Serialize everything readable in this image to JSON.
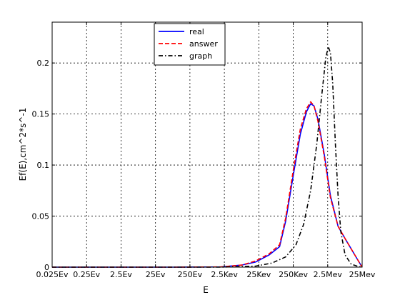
{
  "chart_data": {
    "type": "line",
    "title": "",
    "xlabel": "E",
    "ylabel": "Ef(E),cm^2*s^-1",
    "xscale": "log",
    "xlim": [
      0.025,
      25000000
    ],
    "ylim": [
      0,
      0.24
    ],
    "grid": true,
    "legend_position": "top-center",
    "x_ticks": [
      {
        "value": 0.025,
        "label": "0.025Ev"
      },
      {
        "value": 0.25,
        "label": "0.25Ev"
      },
      {
        "value": 2.5,
        "label": "2.5Ev"
      },
      {
        "value": 25,
        "label": "25Ev"
      },
      {
        "value": 250,
        "label": "250Ev"
      },
      {
        "value": 2500,
        "label": "2.5Kev"
      },
      {
        "value": 25000,
        "label": "25Kev"
      },
      {
        "value": 250000,
        "label": "250Kev"
      },
      {
        "value": 2500000,
        "label": "2.5Mev"
      },
      {
        "value": 25000000,
        "label": "25Mev"
      }
    ],
    "y_ticks": [
      {
        "value": 0,
        "label": "0"
      },
      {
        "value": 0.05,
        "label": "0.05"
      },
      {
        "value": 0.1,
        "label": "0.1"
      },
      {
        "value": 0.15,
        "label": "0.15"
      },
      {
        "value": 0.2,
        "label": "0.2"
      }
    ],
    "series": [
      {
        "name": "real",
        "color": "#0000ff",
        "style": "solid",
        "x": [
          0.025,
          1,
          100,
          2000,
          8000,
          20000,
          50000,
          100000,
          150000,
          250000,
          400000,
          600000,
          800000,
          1000000,
          1300000,
          2000000,
          3000000,
          5000000,
          8000000,
          12000000,
          18000000,
          25000000
        ],
        "y": [
          0,
          0,
          0,
          0.0002,
          0.002,
          0.005,
          0.012,
          0.02,
          0.045,
          0.09,
          0.13,
          0.152,
          0.16,
          0.158,
          0.145,
          0.11,
          0.07,
          0.04,
          0.028,
          0.018,
          0.008,
          0
        ]
      },
      {
        "name": "answer",
        "color": "#ff0000",
        "style": "dashed",
        "x": [
          0.025,
          1,
          100,
          2000,
          8000,
          20000,
          50000,
          100000,
          150000,
          250000,
          400000,
          600000,
          800000,
          1000000,
          1300000,
          2000000,
          3000000,
          5000000,
          8000000,
          12000000,
          18000000,
          25000000
        ],
        "y": [
          0,
          0,
          0,
          0.0002,
          0.002,
          0.006,
          0.013,
          0.022,
          0.048,
          0.095,
          0.135,
          0.155,
          0.162,
          0.158,
          0.143,
          0.108,
          0.068,
          0.04,
          0.028,
          0.018,
          0.008,
          0
        ]
      },
      {
        "name": "graph",
        "color": "#000000",
        "style": "dashdot",
        "x": [
          0.025,
          1,
          100,
          2000,
          20000,
          60000,
          150000,
          300000,
          500000,
          800000,
          1200000,
          1700000,
          2200000,
          2600000,
          3000000,
          3500000,
          4200000,
          5000000,
          6000000,
          8000000,
          12000000,
          18000000,
          25000000
        ],
        "y": [
          0,
          0,
          0,
          0,
          0.001,
          0.004,
          0.01,
          0.022,
          0.042,
          0.075,
          0.12,
          0.17,
          0.205,
          0.216,
          0.21,
          0.18,
          0.12,
          0.07,
          0.035,
          0.012,
          0.003,
          0.001,
          0
        ]
      }
    ]
  }
}
